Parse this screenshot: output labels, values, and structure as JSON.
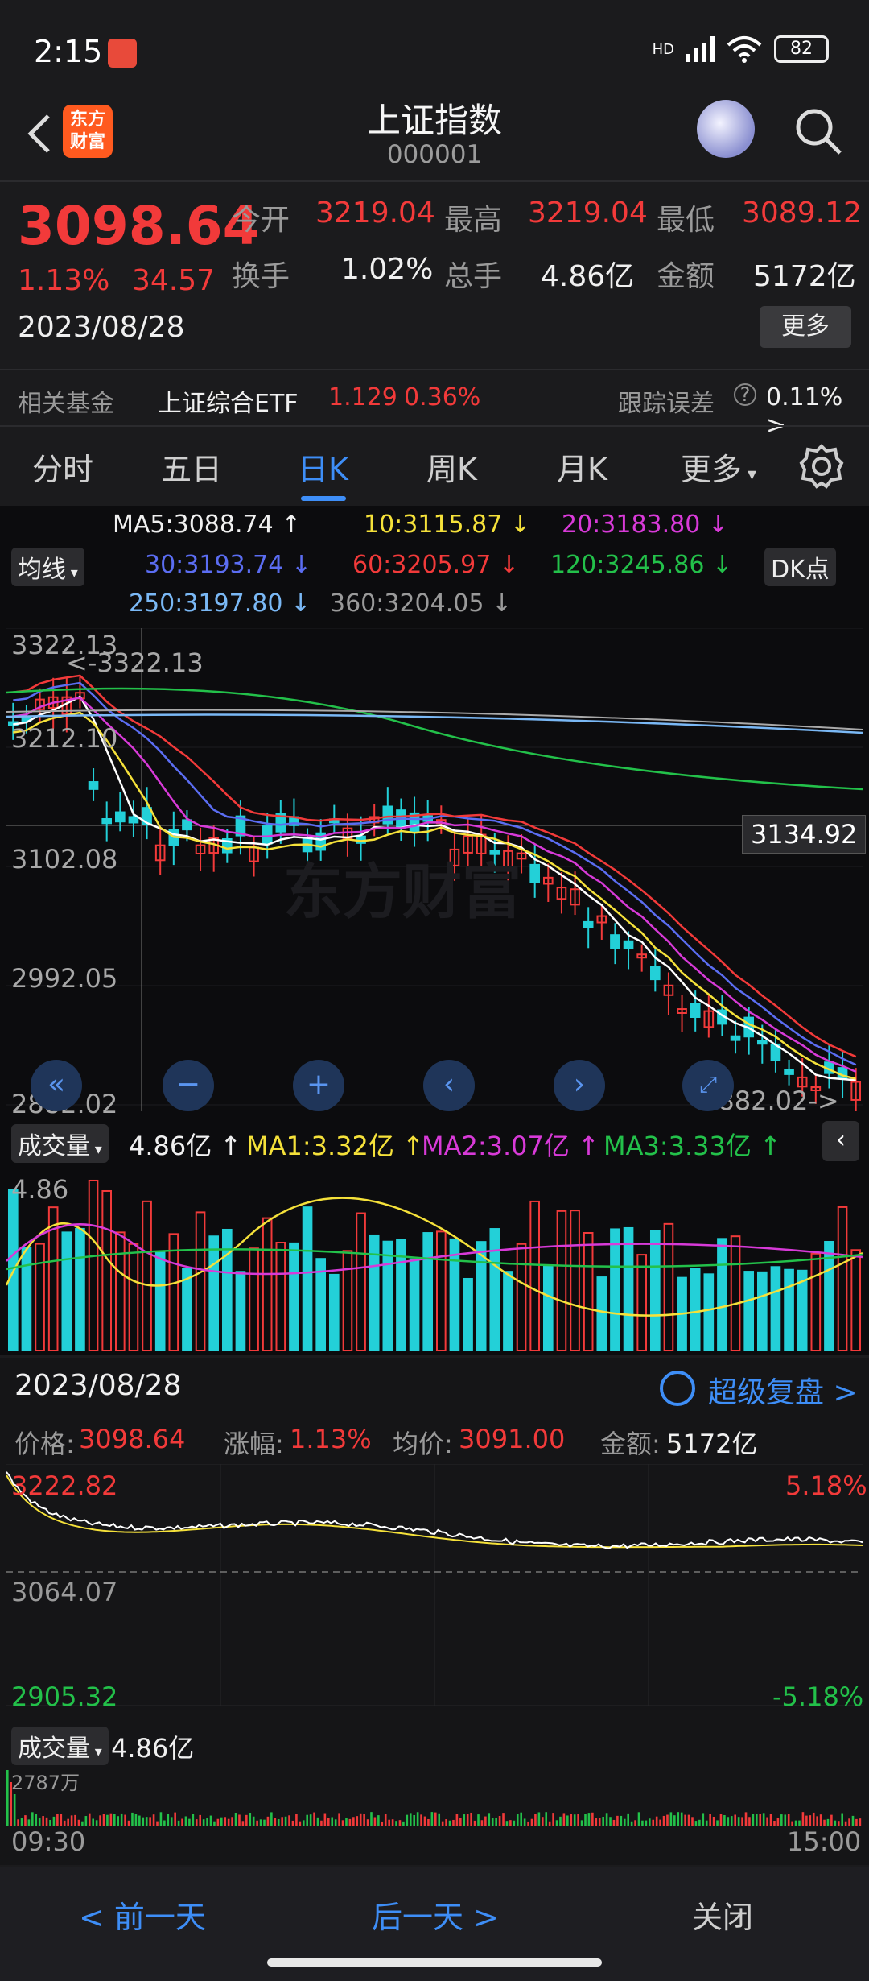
{
  "status": {
    "time": "2:15",
    "net": "HD",
    "battery": "82"
  },
  "header": {
    "title": "上证指数",
    "code": "000001",
    "brand_line1": "东方",
    "brand_line2": "财富"
  },
  "quote": {
    "price": "3098.64",
    "pct": "1.13%",
    "change": "34.57",
    "date": "2023/08/28",
    "open_label": "今开",
    "open": "3219.04",
    "high_label": "最高",
    "high": "3219.04",
    "low_label": "最低",
    "low": "3089.12",
    "turnover_label": "换手",
    "turnover": "1.02%",
    "volume_label": "总手",
    "volume": "4.86亿",
    "amount_label": "金额",
    "amount": "5172亿",
    "more_label": "更多"
  },
  "fund": {
    "label": "相关基金",
    "name": "上证综合ETF",
    "price": "1.129",
    "pct": "0.36%",
    "track_label": "跟踪误差",
    "track_value": "0.11% >"
  },
  "tabs": [
    "分时",
    "五日",
    "日K",
    "周K",
    "月K",
    "更多"
  ],
  "active_tab": "日K",
  "ma": {
    "ma5": "MA5:3088.74 ↑",
    "ma10": "10:3115.87 ↓",
    "ma20": "20:3183.80 ↓",
    "ma30": "30:3193.74 ↓",
    "ma60": "60:3205.97 ↓",
    "ma120": "120:3245.86 ↓",
    "ma250": "250:3197.80 ↓",
    "ma360": "360:3204.05 ↓",
    "junxian": "均线",
    "dk": "DK点"
  },
  "kline": {
    "y_labels": [
      "3322.13",
      "3212.10",
      "3102.08",
      "2992.05",
      "2882.02"
    ],
    "high_marker": "<-3322.13",
    "low_marker": "2882.02->",
    "crosshair_value": "3134.92",
    "watermark": "东方财富"
  },
  "volume": {
    "label": "成交量",
    "value": "4.86亿 ↑",
    "ma1": "MA1:3.32亿 ↑",
    "ma2": "MA2:3.07亿 ↑",
    "ma3": "MA3:3.33亿 ↑",
    "axis": "4.86"
  },
  "minute": {
    "date": "2023/08/28",
    "replay": "超级复盘 >",
    "price_label": "价格:",
    "price": "3098.64",
    "pct_label": "涨幅:",
    "pct": "1.13%",
    "avg_label": "均价:",
    "avg": "3091.00",
    "amount_label": "金额:",
    "amount": "5172亿",
    "top": "3222.82",
    "mid": "3064.07",
    "bottom": "2905.32",
    "top_pct": "5.18%",
    "bottom_pct": "-5.18%",
    "vol_label": "成交量",
    "vol_value": "4.86亿",
    "vol_axis": "2787万",
    "t_start": "09:30",
    "t_end": "15:00"
  },
  "nav": {
    "prev": "< 前一天",
    "next": "后一天 >",
    "close": "关闭"
  },
  "colors": {
    "up": "#f23a3a",
    "down": "#23d0d8",
    "accent": "#3e8ef7"
  }
}
